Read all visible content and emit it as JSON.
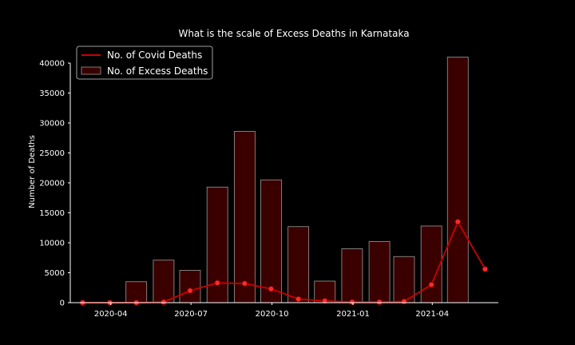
{
  "chart_data": {
    "type": "bar",
    "title": "What is the scale of Excess Deaths in Karnataka",
    "xlabel": "",
    "ylabel": "Number of Deaths",
    "ylim": [
      0,
      40000
    ],
    "y_ticks": [
      0,
      5000,
      10000,
      15000,
      20000,
      25000,
      30000,
      35000,
      40000
    ],
    "x_tick_labels": [
      "2020-04",
      "2020-07",
      "2020-10",
      "2021-01",
      "2021-04"
    ],
    "legend_position": "top-left",
    "grid": false,
    "background_color": "#000000",
    "bar_color": "#3a0000",
    "line_color": "#cc0000",
    "marker_color": "#ff2a2a",
    "series": [
      {
        "name": "No. of Excess Deaths",
        "type": "bar",
        "x": [
          "2020-03-31",
          "2020-04-30",
          "2020-05-31",
          "2020-06-30",
          "2020-07-31",
          "2020-08-31",
          "2020-09-30",
          "2020-10-31",
          "2020-11-30",
          "2020-12-31",
          "2021-01-31",
          "2021-02-28",
          "2021-03-31",
          "2021-04-30"
        ],
        "values": [
          0,
          3500,
          7100,
          5400,
          19300,
          28600,
          20500,
          12700,
          3600,
          9000,
          10200,
          7700,
          12800,
          41000
        ]
      },
      {
        "name": "No. of Covid Deaths",
        "type": "line",
        "x": [
          "2020-02-29",
          "2020-03-31",
          "2020-04-30",
          "2020-05-31",
          "2020-06-30",
          "2020-07-31",
          "2020-08-31",
          "2020-09-30",
          "2020-10-31",
          "2020-11-30",
          "2020-12-31",
          "2021-01-31",
          "2021-02-28",
          "2021-03-31",
          "2021-04-30",
          "2021-05-31"
        ],
        "values": [
          0,
          0,
          0,
          100,
          2000,
          3300,
          3200,
          2300,
          600,
          300,
          100,
          100,
          200,
          3000,
          13500,
          5600
        ]
      }
    ]
  }
}
